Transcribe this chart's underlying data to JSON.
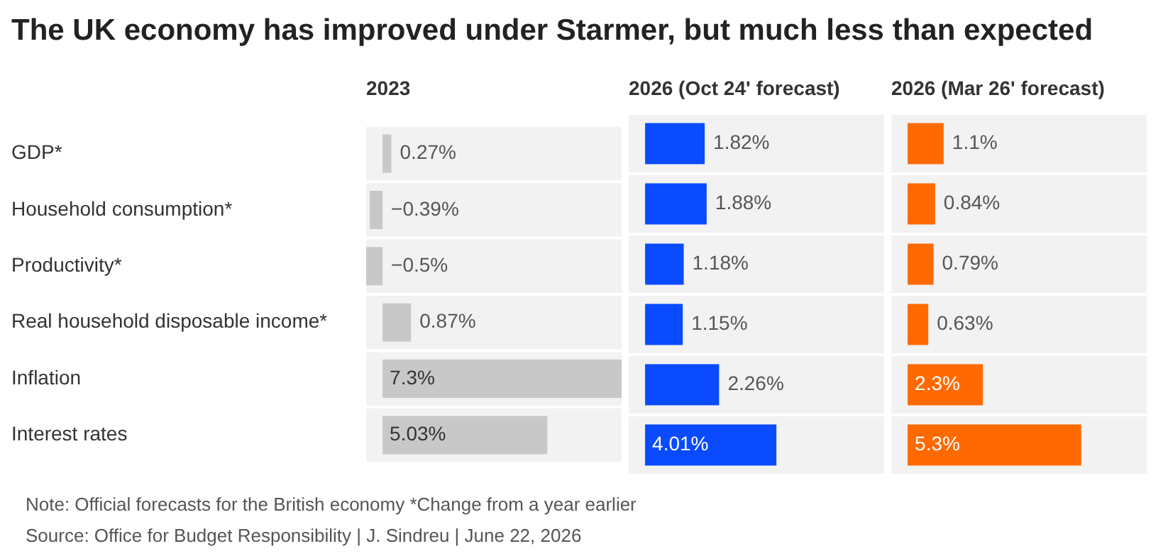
{
  "chart_data": [
    {
      "type": "bar",
      "orientation": "horizontal",
      "title": "The UK economy has improved under Starmer, but much less than expected",
      "subtitle": "2023",
      "categories": [
        "GDP*",
        "Household consumption*",
        "Productivity*",
        "Real household disposable income*",
        "Inflation",
        "Interest rates"
      ],
      "values": [
        0.27,
        -0.39,
        -0.5,
        0.87,
        7.3,
        5.03
      ],
      "value_labels": [
        "0.27%",
        "−0.39%",
        "−0.5%",
        "0.87%",
        "7.3%",
        "5.03%"
      ],
      "color": "#c8c8c8",
      "xlim": [
        -0.5,
        7.3
      ],
      "tick_labels": "y",
      "annotations": [
        "Note: Official forecasts for the British economy *Change from a year earlier",
        "Source: Office for Budget Responsibility | J. Sindreu | June 22, 2026"
      ]
    },
    {
      "type": "bar",
      "orientation": "horizontal",
      "subtitle": "2026 (Oct 24' forecast)",
      "categories": [
        null,
        null,
        null,
        null,
        null,
        null
      ],
      "values": [
        1.82,
        1.88,
        1.18,
        1.15,
        2.26,
        4.01
      ],
      "value_labels": [
        "1.82%",
        "1.88%",
        "1.18%",
        "1.15%",
        "2.26%",
        "4.01%"
      ],
      "color": "#0a4bff",
      "xlim": [
        -0.5,
        7.3
      ],
      "tick_labels": false
    },
    {
      "type": "bar",
      "orientation": "horizontal",
      "subtitle": "2026 (Mar 26' forecast)",
      "categories": [
        null,
        null,
        null,
        null,
        null,
        null
      ],
      "values": [
        1.1,
        0.84,
        0.79,
        0.63,
        2.3,
        5.3
      ],
      "value_labels": [
        "1.1%",
        "0.84%",
        "0.79%",
        "0.63%",
        "2.3%",
        "5.3%"
      ],
      "color": "#ff6a00",
      "xlim": [
        -0.5,
        7.3
      ],
      "tick_labels": false
    }
  ]
}
